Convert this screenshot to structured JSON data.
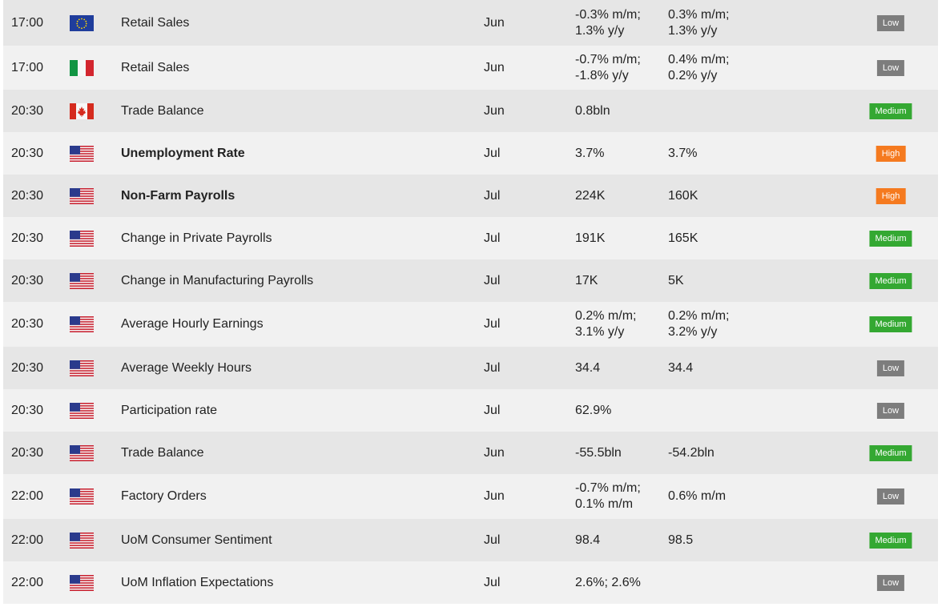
{
  "table": {
    "rows": [
      {
        "time": "17:00",
        "event": "Retail Sales",
        "period": "Jun",
        "actual": "-0.3% m/m;\n1.3% y/y",
        "forecast": "0.3% m/m;\n1.3% y/y",
        "importance": "Low"
      },
      {
        "time": "17:00",
        "event": "Retail Sales",
        "period": "Jun",
        "actual": "-0.7% m/m;\n-1.8% y/y",
        "forecast": "0.4% m/m;\n0.2% y/y",
        "importance": "Low"
      },
      {
        "time": "20:30",
        "event": "Trade Balance",
        "period": "Jun",
        "actual": "0.8bln",
        "importance": "Medium"
      },
      {
        "time": "20:30",
        "event": "Unemployment Rate",
        "period": "Jul",
        "actual": "3.7%",
        "forecast": "3.7%",
        "importance": "High",
        "bold": true
      },
      {
        "time": "20:30",
        "event": "Non-Farm Payrolls",
        "period": "Jul",
        "actual": "224K",
        "forecast": "160K",
        "importance": "High",
        "bold": true
      },
      {
        "time": "20:30",
        "event": "Change in Private Payrolls",
        "period": "Jul",
        "actual": "191K",
        "forecast": "165K",
        "importance": "Medium"
      },
      {
        "time": "20:30",
        "event": "Change in Manufacturing Payrolls",
        "period": "Jul",
        "actual": "17K",
        "forecast": "5K",
        "importance": "Medium"
      },
      {
        "time": "20:30",
        "event": "Average Hourly Earnings",
        "period": "Jul",
        "actual": "0.2% m/m;\n3.1% y/y",
        "forecast": "0.2% m/m;\n3.2% y/y",
        "importance": "Medium"
      },
      {
        "time": "20:30",
        "event": "Average Weekly Hours",
        "period": "Jul",
        "actual": "34.4",
        "forecast": "34.4",
        "importance": "Low"
      },
      {
        "time": "20:30",
        "event": "Participation rate",
        "period": "Jul",
        "actual": "62.9%",
        "importance": "Low"
      },
      {
        "time": "20:30",
        "event": "Trade Balance",
        "period": "Jun",
        "actual": "-55.5bln",
        "forecast": "-54.2bln",
        "importance": "Medium"
      },
      {
        "time": "22:00",
        "event": "Factory Orders",
        "period": "Jun",
        "actual": "-0.7% m/m;\n0.1% m/m",
        "forecast": "0.6% m/m",
        "importance": "Low"
      },
      {
        "time": "22:00",
        "event": "UoM Consumer Sentiment",
        "period": "Jul",
        "actual": "98.4",
        "forecast": "98.5",
        "importance": "Medium"
      },
      {
        "time": "22:00",
        "event": "UoM Inflation Expectations",
        "period": "Jul",
        "actual": "2.6%; 2.6%",
        "importance": "Low"
      }
    ]
  }
}
